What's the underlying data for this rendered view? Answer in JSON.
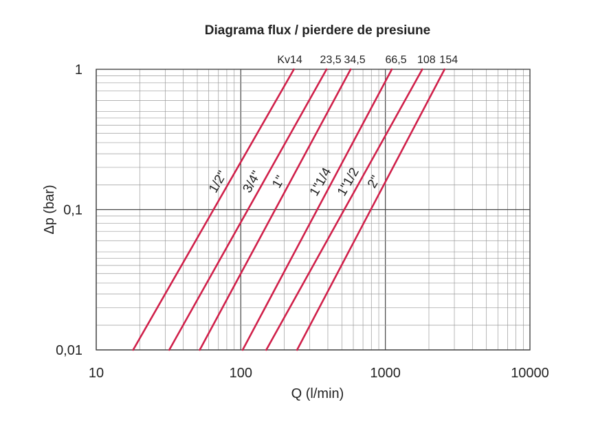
{
  "chart_data": {
    "type": "line",
    "title": "Diagrama flux / pierdere de presiune",
    "xlabel": "Q (l/min)",
    "ylabel": "Δp (bar)",
    "x_scale": "log",
    "y_scale": "log",
    "xlim": [
      10,
      10000
    ],
    "ylim": [
      0.01,
      1
    ],
    "x_ticks": [
      "10",
      "100",
      "1000",
      "10000"
    ],
    "y_ticks": [
      "0,01",
      "0,1",
      "1"
    ],
    "grid": true,
    "line_color": "#d0204a",
    "kv_prefix": "Kv",
    "series": [
      {
        "name": "1/2\"",
        "kv_label": "14",
        "x": [
          18,
          233
        ],
        "y": [
          0.01,
          1
        ]
      },
      {
        "name": "3/4\"",
        "kv_label": "23,5",
        "x": [
          32,
          392
        ],
        "y": [
          0.01,
          1
        ]
      },
      {
        "name": "1\"",
        "kv_label": "34,5",
        "x": [
          52,
          575
        ],
        "y": [
          0.01,
          1
        ]
      },
      {
        "name": "1\"1/4",
        "kv_label": "66,5",
        "x": [
          103,
          1108
        ],
        "y": [
          0.01,
          1
        ]
      },
      {
        "name": "1\"1/2",
        "kv_label": "108",
        "x": [
          150,
          1800
        ],
        "y": [
          0.01,
          1
        ]
      },
      {
        "name": "2\"",
        "kv_label": "154",
        "x": [
          245,
          2567
        ],
        "y": [
          0.01,
          1
        ]
      }
    ]
  }
}
